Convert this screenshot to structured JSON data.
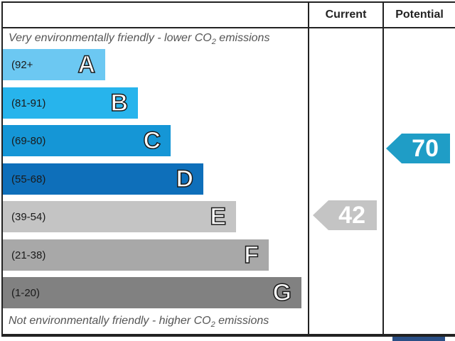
{
  "chart_data": {
    "type": "energy-rating",
    "columns": [
      "Current",
      "Potential"
    ],
    "top_note_prefix": "Very environmentally friendly - lower CO",
    "top_note_suffix": " emissions",
    "bottom_note_prefix": "Not environmentally friendly - higher CO",
    "bottom_note_suffix": " emissions",
    "co2_subscript": "2",
    "bands": [
      {
        "letter": "A",
        "range": "(92+",
        "color": "#6cc8f2"
      },
      {
        "letter": "B",
        "range": "(81-91)",
        "color": "#27b4ec"
      },
      {
        "letter": "C",
        "range": "(69-80)",
        "color": "#1596d6"
      },
      {
        "letter": "D",
        "range": "(55-68)",
        "color": "#0e6fba"
      },
      {
        "letter": "E",
        "range": "(39-54)",
        "color": "#c4c4c4"
      },
      {
        "letter": "F",
        "range": "(21-38)",
        "color": "#a8a8a8"
      },
      {
        "letter": "G",
        "range": "(1-20)",
        "color": "#818181"
      }
    ],
    "current": {
      "value": "42",
      "band": "E",
      "color": "#c4c4c4"
    },
    "potential": {
      "value": "70",
      "band": "C",
      "color": "#1f9dc6"
    }
  }
}
